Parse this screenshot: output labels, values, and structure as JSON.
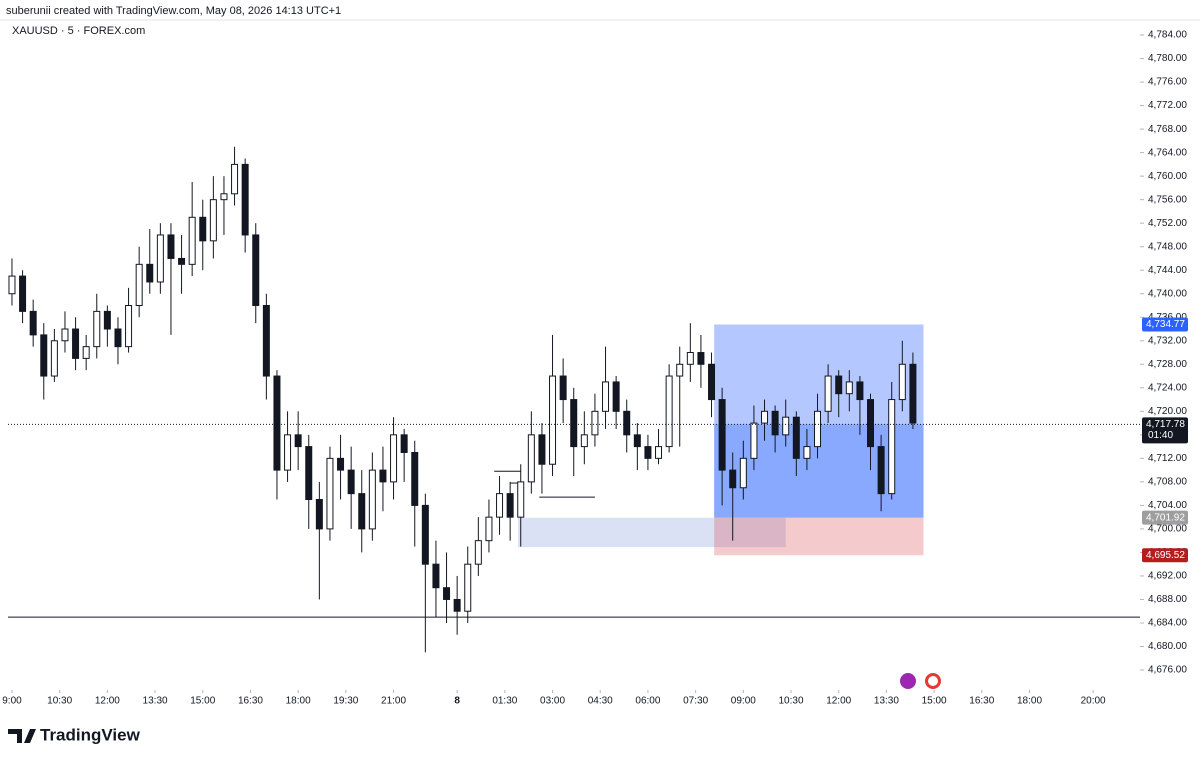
{
  "chart_data": {
    "type": "candlestick",
    "header": "suberunii created with TradingView.com, May 08, 2026 14:13 UTC+1",
    "symbol": "XAUUSD · 5 · FOREX.com",
    "brand": "TradingView",
    "xlim": [
      -1.5,
      425.7
    ],
    "xticks": [
      {
        "value": 0,
        "label": "9:00"
      },
      {
        "value": 18,
        "label": "10:30"
      },
      {
        "value": 36,
        "label": "12:00"
      },
      {
        "value": 54,
        "label": "13:30"
      },
      {
        "value": 72,
        "label": "15:00"
      },
      {
        "value": 90,
        "label": "16:30"
      },
      {
        "value": 108,
        "label": "18:00"
      },
      {
        "value": 126,
        "label": "19:30"
      },
      {
        "value": 144,
        "label": "21:00"
      },
      {
        "value": 168,
        "label": "8"
      },
      {
        "value": 186,
        "label": "01:30"
      },
      {
        "value": 204,
        "label": "03:00"
      },
      {
        "value": 222,
        "label": "04:30"
      },
      {
        "value": 240,
        "label": "06:00"
      },
      {
        "value": 258,
        "label": "07:30"
      },
      {
        "value": 276,
        "label": "09:00"
      },
      {
        "value": 294,
        "label": "10:30"
      },
      {
        "value": 312,
        "label": "12:00"
      },
      {
        "value": 330,
        "label": "13:30"
      },
      {
        "value": 348,
        "label": "15:00"
      },
      {
        "value": 366,
        "label": "16:30"
      },
      {
        "value": 384,
        "label": "18:00"
      },
      {
        "value": 408,
        "label": "20:00"
      }
    ],
    "ylim": [
      4672.6,
      4788.6
    ],
    "yticks": [
      {
        "value": 4676,
        "label": "4,676.00"
      },
      {
        "value": 4680,
        "label": "4,680.00"
      },
      {
        "value": 4684,
        "label": "4,684.00"
      },
      {
        "value": 4688,
        "label": "4,688.00"
      },
      {
        "value": 4692,
        "label": "4,692.00"
      },
      {
        "value": 4696,
        "label": "4,696.00"
      },
      {
        "value": 4700,
        "label": "4,700.00"
      },
      {
        "value": 4704,
        "label": "4,704.00"
      },
      {
        "value": 4708,
        "label": "4,708.00"
      },
      {
        "value": 4712,
        "label": "4,712.00"
      },
      {
        "value": 4716,
        "label": "4,716.00"
      },
      {
        "value": 4720,
        "label": "4,720.00"
      },
      {
        "value": 4724,
        "label": "4,724.00"
      },
      {
        "value": 4728,
        "label": "4,728.00"
      },
      {
        "value": 4732,
        "label": "4,732.00"
      },
      {
        "value": 4736,
        "label": "4,736.00"
      },
      {
        "value": 4740,
        "label": "4,740.00"
      },
      {
        "value": 4744,
        "label": "4,744.00"
      },
      {
        "value": 4748,
        "label": "4,748.00"
      },
      {
        "value": 4752,
        "label": "4,752.00"
      },
      {
        "value": 4756,
        "label": "4,756.00"
      },
      {
        "value": 4760,
        "label": "4,760.00"
      },
      {
        "value": 4764,
        "label": "4,764.00"
      },
      {
        "value": 4768,
        "label": "4,768.00"
      },
      {
        "value": 4772,
        "label": "4,772.00"
      },
      {
        "value": 4776,
        "label": "4,776.00"
      },
      {
        "value": 4780,
        "label": "4,780.00"
      },
      {
        "value": 4784,
        "label": "4,784.00"
      }
    ],
    "grid": false,
    "x": [
      0,
      4,
      8,
      12,
      16,
      20,
      24,
      28,
      32,
      36,
      40,
      44,
      48,
      52,
      56,
      60,
      64,
      68,
      72,
      76,
      80,
      84,
      88,
      92,
      96,
      100,
      104,
      108,
      112,
      116,
      120,
      124,
      128,
      132,
      136,
      140,
      144,
      148,
      152,
      156,
      160,
      164,
      168,
      172,
      176,
      180,
      184,
      188,
      192,
      196,
      200,
      204,
      208,
      212,
      216,
      220,
      224,
      228,
      232,
      236,
      240,
      244,
      248,
      252,
      256,
      260,
      264,
      268,
      272,
      276,
      280,
      284,
      288,
      292,
      296,
      300,
      304,
      308,
      312,
      316,
      320,
      324,
      328,
      332,
      336,
      340
    ],
    "open": [
      4740,
      4743,
      4737,
      4733,
      4726,
      4732,
      4734,
      4729,
      4731,
      4737,
      4734,
      4731,
      4738,
      4745,
      4742,
      4750,
      4746,
      4745,
      4753,
      4749,
      4756,
      4757,
      4762,
      4750,
      4738,
      4726,
      4710,
      4716,
      4714,
      4705,
      4700,
      4712,
      4710,
      4706,
      4700,
      4710,
      4708,
      4716,
      4713,
      4704,
      4694,
      4690,
      4688,
      4686,
      4694,
      4698,
      4702,
      4706,
      4702,
      4708,
      4716,
      4711,
      4726,
      4722,
      4714,
      4716,
      4720,
      4725,
      4720,
      4716,
      4714,
      4712,
      4714,
      4726,
      4728,
      4730,
      4728,
      4722,
      4710,
      4707,
      4712,
      4718,
      4720,
      4716,
      4719,
      4712,
      4714,
      4720,
      4726,
      4723,
      4725,
      4722,
      4714,
      4706,
      4722,
      4728
    ],
    "high": [
      4746,
      4744,
      4739,
      4735,
      4734,
      4737,
      4736,
      4733,
      4740,
      4738,
      4736,
      4741,
      4748,
      4751,
      4752,
      4752,
      4750,
      4759,
      4756,
      4760,
      4760,
      4765,
      4763,
      4752,
      4740,
      4727,
      4720,
      4720,
      4716,
      4708,
      4714,
      4716,
      4714,
      4710,
      4713,
      4714,
      4719,
      4717,
      4715,
      4706,
      4698,
      4696,
      4692,
      4697,
      4702,
      4705,
      4709,
      4708,
      4711,
      4720,
      4718,
      4733,
      4729,
      4724,
      4720,
      4723,
      4731,
      4726,
      4722,
      4718,
      4716,
      4717,
      4728,
      4731,
      4735,
      4733,
      4730,
      4724,
      4713,
      4715,
      4721,
      4722,
      4721,
      4722,
      4720,
      4717,
      4723,
      4728,
      4727,
      4727,
      4726,
      4723,
      4716,
      4725,
      4732,
      4730
    ],
    "low": [
      4738,
      4735,
      4731,
      4722,
      4725,
      4730,
      4727,
      4727,
      4729,
      4731,
      4728,
      4730,
      4736,
      4740,
      4740,
      4733,
      4740,
      4743,
      4744,
      4746,
      4750,
      4755,
      4747,
      4735,
      4722,
      4705,
      4708,
      4710,
      4700,
      4688,
      4698,
      4705,
      4700,
      4696,
      4698,
      4703,
      4705,
      4708,
      4697,
      4679,
      4685,
      4684,
      4682,
      4684,
      4692,
      4696,
      4699,
      4698,
      4697,
      4706,
      4706,
      4709,
      4718,
      4709,
      4711,
      4714,
      4717,
      4717,
      4713,
      4710,
      4710,
      4711,
      4713,
      4714,
      4725,
      4724,
      4719,
      4704,
      4698,
      4705,
      4710,
      4715,
      4713,
      4714,
      4709,
      4710,
      4712,
      4718,
      4719,
      4720,
      4716,
      4710,
      4703,
      4705,
      4720,
      4717
    ],
    "close": [
      4743,
      4737,
      4733,
      4726,
      4732,
      4734,
      4729,
      4731,
      4737,
      4734,
      4731,
      4738,
      4745,
      4742,
      4750,
      4746,
      4745,
      4753,
      4749,
      4756,
      4757,
      4762,
      4750,
      4738,
      4726,
      4710,
      4716,
      4714,
      4705,
      4700,
      4712,
      4710,
      4706,
      4700,
      4710,
      4708,
      4716,
      4713,
      4704,
      4694,
      4690,
      4688,
      4686,
      4694,
      4698,
      4702,
      4706,
      4702,
      4708,
      4716,
      4711,
      4726,
      4722,
      4714,
      4716,
      4720,
      4725,
      4720,
      4716,
      4714,
      4712,
      4714,
      4726,
      4728,
      4730,
      4728,
      4722,
      4710,
      4707,
      4712,
      4718,
      4720,
      4716,
      4719,
      4712,
      4714,
      4720,
      4726,
      4723,
      4725,
      4722,
      4714,
      4706,
      4722,
      4728,
      4718
    ],
    "position": {
      "start": 265,
      "end": 344,
      "target": {
        "value": 4734.77,
        "label": "4,734.77"
      },
      "entry": {
        "value": 4701.92,
        "label": "4,701.92"
      },
      "stop": {
        "value": 4695.52,
        "label": "4,695.52"
      }
    },
    "current_price": {
      "value": 4717.78,
      "label": "4,717.78"
    },
    "countdown": "01:40",
    "zone": {
      "start": 191,
      "end": 292,
      "top": 4701.9,
      "bottom": 4696.9
    },
    "hline": 4685,
    "segments": [
      {
        "price": 4709.8,
        "start": 182,
        "end": 192
      },
      {
        "price": 4707.8,
        "start": 188,
        "end": 192
      },
      {
        "price": 4705.4,
        "start": 199,
        "end": 220
      }
    ]
  }
}
